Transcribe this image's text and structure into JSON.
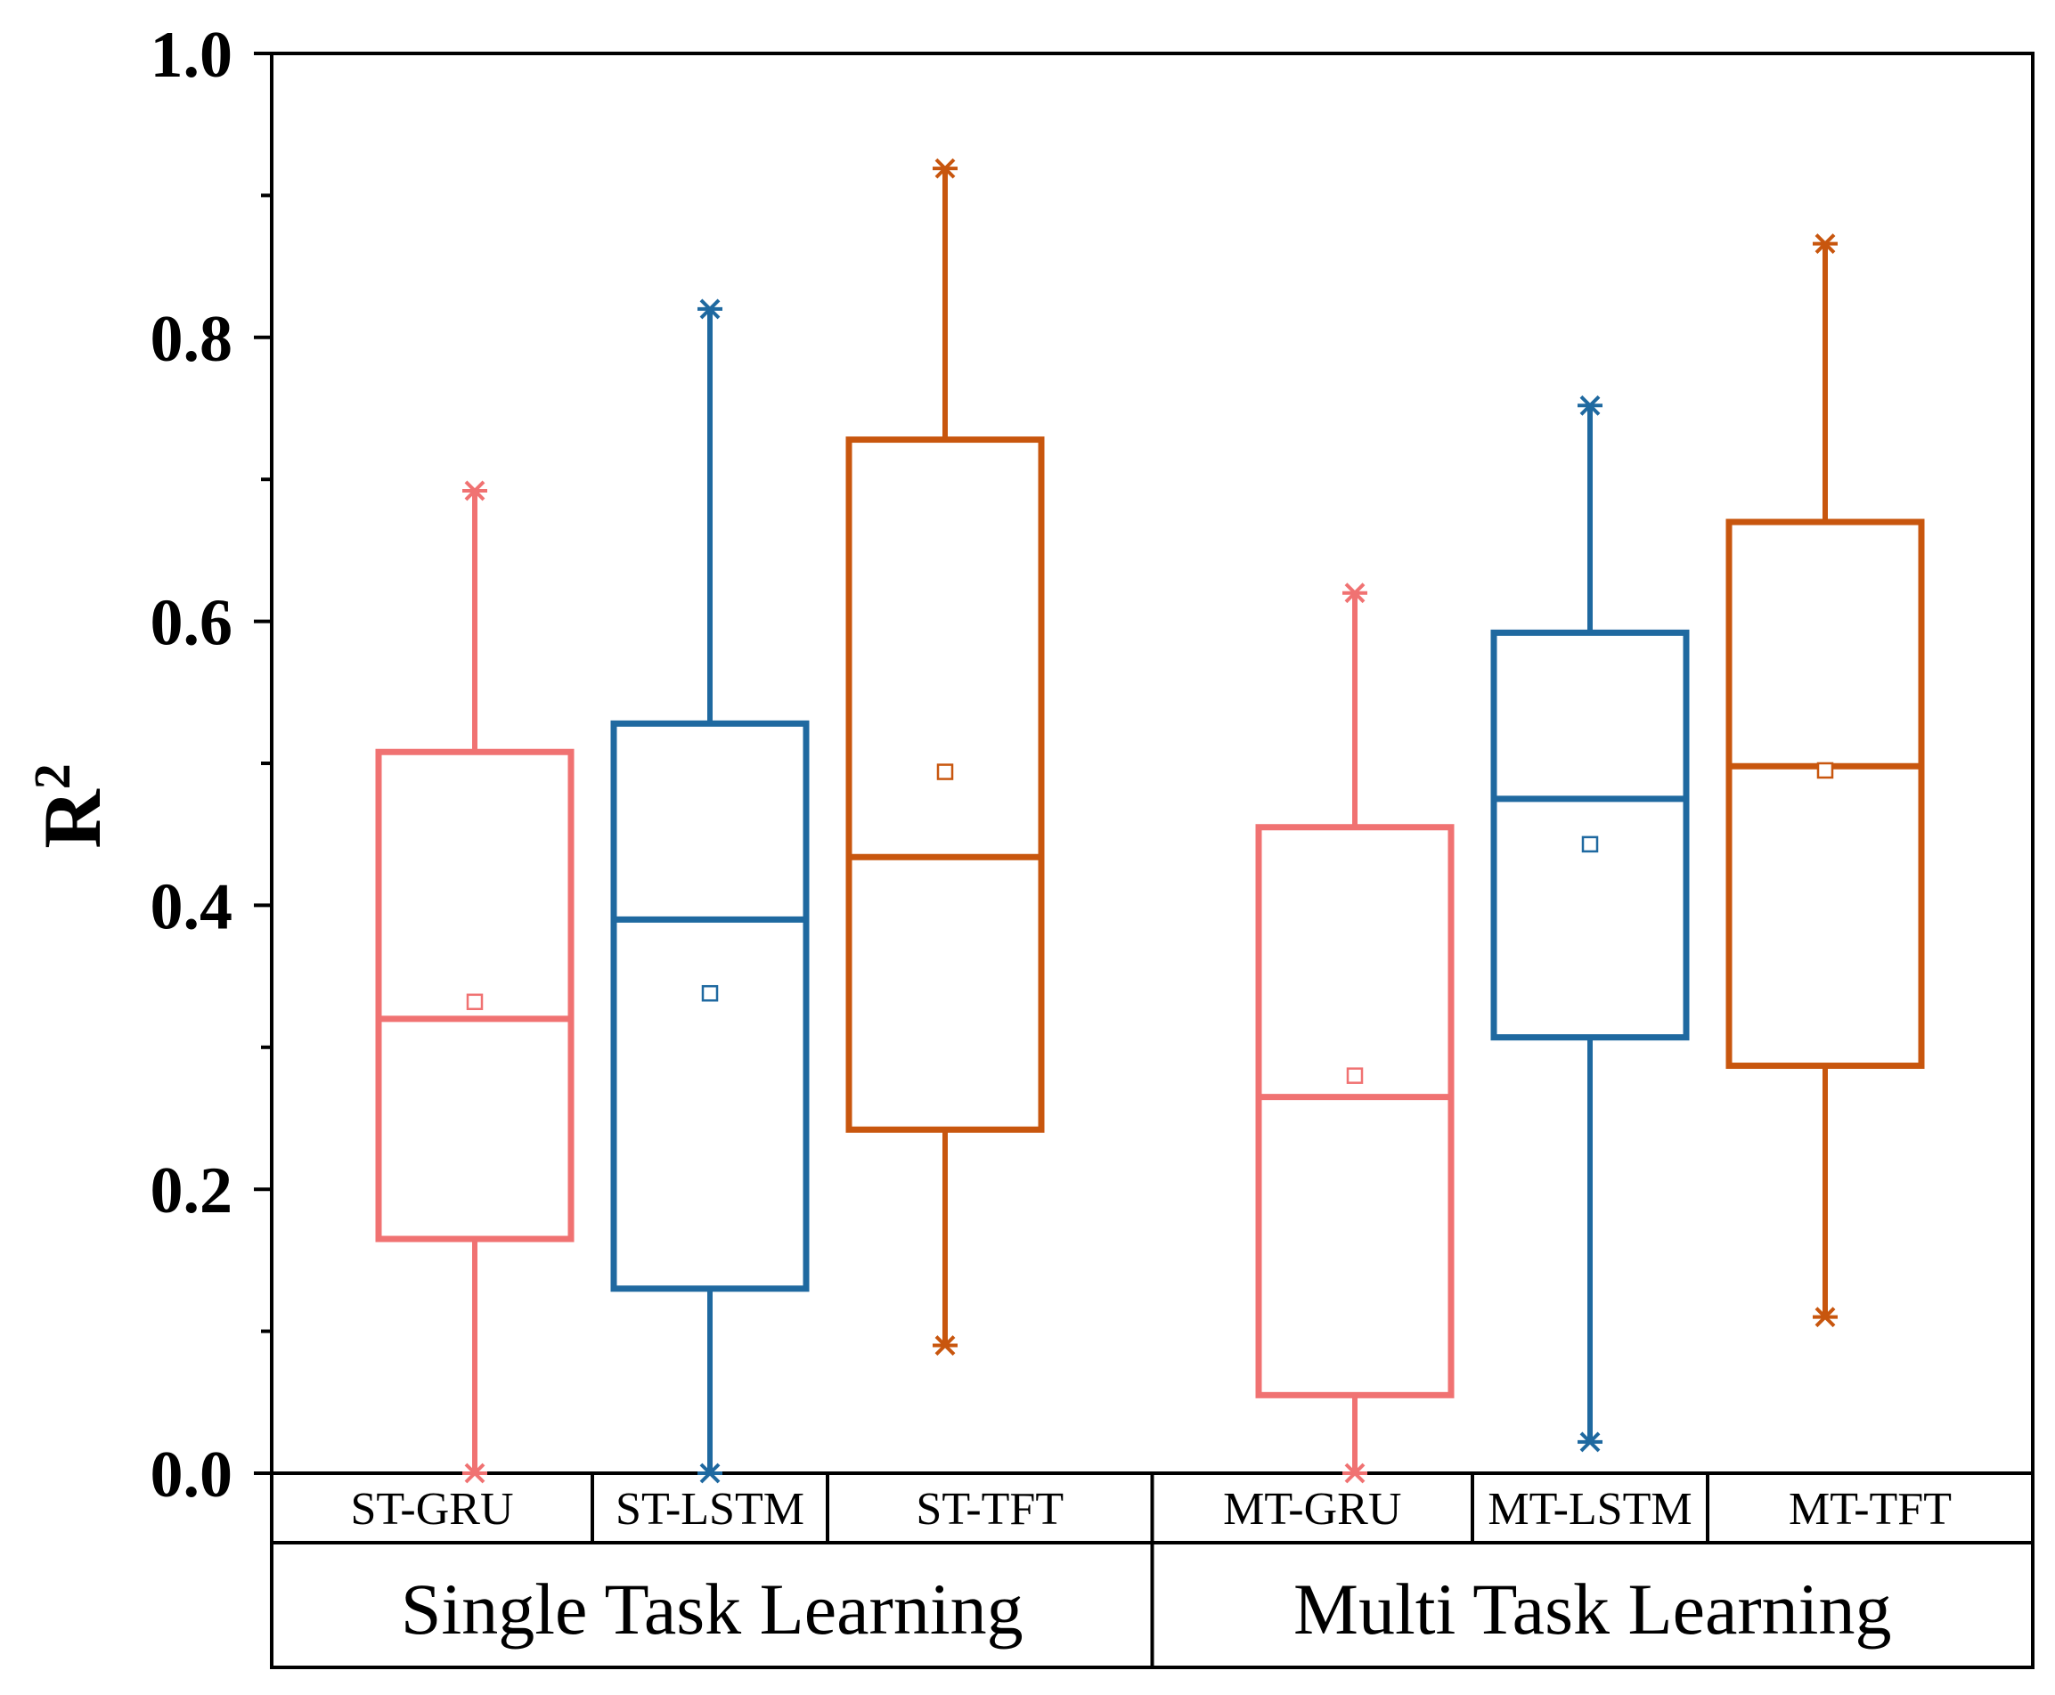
{
  "chart_data": {
    "type": "box",
    "title": "",
    "xlabel": "",
    "ylabel": "R",
    "ylabel_superscript": "2",
    "ylim": [
      0.0,
      1.0
    ],
    "yticks": [
      "0.0",
      "0.2",
      "0.4",
      "0.6",
      "0.8",
      "1.0"
    ],
    "groups": [
      {
        "label": "Single Task Learning",
        "categories": [
          "ST-GRU",
          "ST-LSTM",
          "ST-TFT"
        ]
      },
      {
        "label": "Multi Task Learning",
        "categories": [
          "MT-GRU",
          "MT-LSTM",
          "MT-TFT"
        ]
      }
    ],
    "series": [
      {
        "name": "ST-GRU",
        "color": "#F07272",
        "min": 0.0,
        "q1": 0.165,
        "median": 0.32,
        "q3": 0.508,
        "max": 0.692,
        "mean": 0.332
      },
      {
        "name": "ST-LSTM",
        "color": "#1F69A0",
        "min": 0.0,
        "q1": 0.13,
        "median": 0.39,
        "q3": 0.528,
        "max": 0.82,
        "mean": 0.338
      },
      {
        "name": "ST-TFT",
        "color": "#C8560E",
        "min": 0.09,
        "q1": 0.242,
        "median": 0.434,
        "q3": 0.728,
        "max": 0.919,
        "mean": 0.494
      },
      {
        "name": "MT-GRU",
        "color": "#F07272",
        "min": 0.0,
        "q1": 0.055,
        "median": 0.265,
        "q3": 0.455,
        "max": 0.62,
        "mean": 0.28
      },
      {
        "name": "MT-LSTM",
        "color": "#1F69A0",
        "min": 0.022,
        "q1": 0.307,
        "median": 0.475,
        "q3": 0.592,
        "max": 0.752,
        "mean": 0.443
      },
      {
        "name": "MT-TFT",
        "color": "#C8560E",
        "min": 0.11,
        "q1": 0.287,
        "median": 0.498,
        "q3": 0.67,
        "max": 0.866,
        "mean": 0.495
      }
    ]
  }
}
